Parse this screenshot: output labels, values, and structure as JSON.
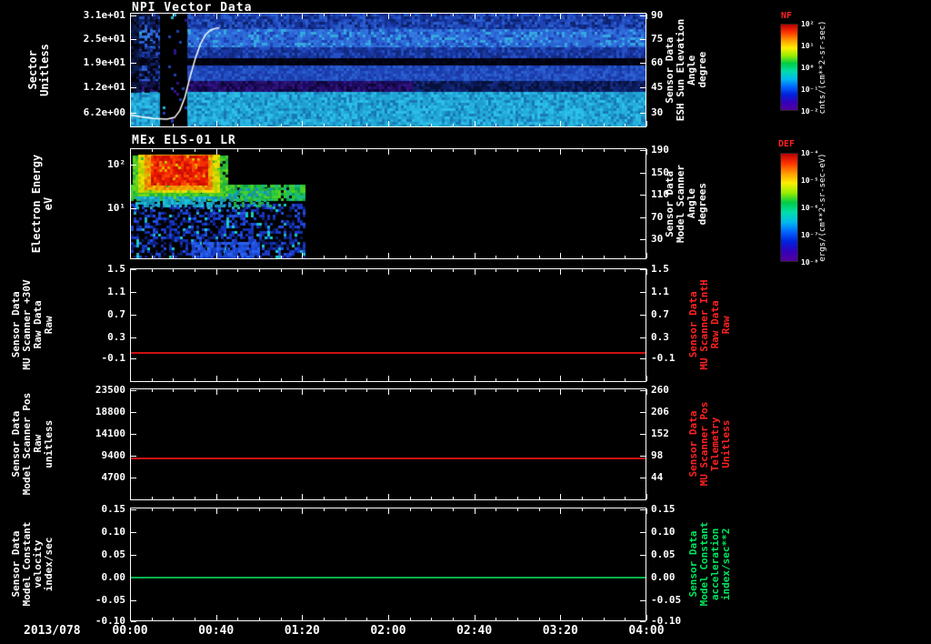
{
  "chart_data": {
    "type": "multi-panel time-series (2 spectrograms + 3 line plots)",
    "x_axis": {
      "date_label": "2013/078",
      "ticks": [
        "00:00",
        "00:40",
        "01:20",
        "02:00",
        "02:40",
        "03:20",
        "04:00"
      ],
      "span_hours": 4
    },
    "panels": [
      {
        "kind": "heatmap",
        "title": "NPI Vector Data",
        "left_label": "Sector\nUnitless",
        "right_label": "Sensor Data\nESH Sun Elevation\nAngle\ndegree",
        "left_ticks": [
          {
            "t": "3.1e+01",
            "f": 0.02
          },
          {
            "t": "2.5e+01",
            "f": 0.23
          },
          {
            "t": "1.9e+01",
            "f": 0.44
          },
          {
            "t": "1.2e+01",
            "f": 0.65
          },
          {
            "t": "6.2e+00",
            "f": 0.87
          }
        ],
        "right_ticks": [
          {
            "t": "90",
            "f": 0.02
          },
          {
            "t": "75",
            "f": 0.23
          },
          {
            "t": "60",
            "f": 0.44
          },
          {
            "t": "45",
            "f": 0.65
          },
          {
            "t": "30",
            "f": 0.87
          }
        ],
        "colorbar": "NF",
        "summary": "NPI counts vs sector: mostly blue/cyan flux, near-black band around sector ~15, purple band below it, bright cyan low sectors; data gap ~00:14-00:25; white overlay = Sun elevation rising from ~25 deg to ~88 deg by ~00:40",
        "overlay_line": {
          "name": "ESH Sun Elevation Angle (deg)",
          "color": "#ffffff",
          "approx_values_deg": [
            [
              "00:00",
              27
            ],
            [
              "00:17",
              24
            ],
            [
              "00:24",
              45
            ],
            [
              "00:31",
              75
            ],
            [
              "00:40",
              88
            ]
          ],
          "points_xf_yf": [
            [
              0,
              0.9
            ],
            [
              0.02,
              0.915
            ],
            [
              0.045,
              0.93
            ],
            [
              0.07,
              0.935
            ],
            [
              0.085,
              0.92
            ],
            [
              0.095,
              0.86
            ],
            [
              0.105,
              0.74
            ],
            [
              0.115,
              0.56
            ],
            [
              0.125,
              0.4
            ],
            [
              0.135,
              0.27
            ],
            [
              0.145,
              0.185
            ],
            [
              0.155,
              0.145
            ],
            [
              0.165,
              0.13
            ],
            [
              0.172,
              0.128
            ]
          ]
        },
        "data_gap_xf": [
          0.057,
          0.105
        ],
        "heat_regions": [
          {
            "x": [
              0,
              1
            ],
            "y": [
              0,
              0.14
            ],
            "p": 1,
            "colors": [
              "#16339b",
              "#1d43b5",
              "#2450c4",
              "#0d2370",
              "#2a5fd0",
              "#123090"
            ]
          },
          {
            "x": [
              0,
              1
            ],
            "y": [
              0.14,
              0.3
            ],
            "p": 1,
            "colors": [
              "#2a62d4",
              "#3379e0",
              "#2e6fd8",
              "#1d43b5",
              "#35a8e0",
              "#2a62d4"
            ]
          },
          {
            "x": [
              0,
              1
            ],
            "y": [
              0.3,
              0.4
            ],
            "p": 1,
            "colors": [
              "#1a3aa8",
              "#16339b",
              "#2450c4",
              "#112a80"
            ]
          },
          {
            "x": [
              0,
              1
            ],
            "y": [
              0.4,
              0.46
            ],
            "p": 1,
            "colors": [
              "#020212",
              "#04081f",
              "#020212",
              "#01010a"
            ]
          },
          {
            "x": [
              0,
              1
            ],
            "y": [
              0.46,
              0.6
            ],
            "p": 1,
            "colors": [
              "#1d43b5",
              "#2450c4",
              "#1a3aa8",
              "#2a5fd0"
            ]
          },
          {
            "x": [
              0,
              1
            ],
            "y": [
              0.6,
              0.7
            ],
            "p": 1,
            "colors": [
              "#2a1070",
              "#1d0a55",
              "#33138a",
              "#0d0535",
              "#1a0a60"
            ]
          },
          {
            "x": [
              0.55,
              1
            ],
            "y": [
              0.6,
              0.7
            ],
            "p": 1,
            "colors": [
              "#0d1f66",
              "#132a80",
              "#0a1850",
              "#071038"
            ]
          },
          {
            "x": [
              0,
              1
            ],
            "y": [
              0.7,
              1
            ],
            "p": 1,
            "colors": [
              "#1f9fd0",
              "#27b4e0",
              "#1a8fc4",
              "#2cc0e8",
              "#1878b4",
              "#22a8d8"
            ]
          },
          {
            "x": [
              0,
              0.055
            ],
            "y": [
              0,
              0.7
            ],
            "p": 0.6,
            "colors": [
              "#0a1440",
              "#060c2a",
              "#10205c",
              "#020210"
            ]
          },
          {
            "x": [
              0,
              0.014
            ],
            "y": [
              0,
              0.7
            ],
            "p": 1,
            "colors": [
              "#03030f",
              "#071233",
              "#0c1d4f"
            ]
          },
          {
            "x": [
              0.057,
              0.105
            ],
            "y": [
              0,
              1
            ],
            "p": 1,
            "colors": [
              "#000000"
            ]
          },
          {
            "x": [
              0.057,
              0.105
            ],
            "y": [
              0,
              1
            ],
            "p": 0.05,
            "colors": [
              "#1d43b5",
              "#27b4e0",
              "#33138a"
            ]
          }
        ]
      },
      {
        "kind": "heatmap",
        "title": "MEx ELS-01 LR",
        "left_label": "Electron Energy\neV",
        "right_label": "Sensor Data\nModel Scanner\nAngle\ndegrees",
        "left_ticks": [
          {
            "t": "10²",
            "f": 0.15
          },
          {
            "t": "10¹",
            "f": 0.54
          }
        ],
        "right_ticks": [
          {
            "t": "190",
            "f": 0.02
          },
          {
            "t": "150",
            "f": 0.22
          },
          {
            "t": "110",
            "f": 0.42
          },
          {
            "t": "70",
            "f": 0.62
          },
          {
            "t": "30",
            "f": 0.82
          }
        ],
        "colorbar": "DEF",
        "summary": "Electron spectrogram: intense 10-100 eV flux (red core, yellow/green halo) from ~00:02 to ~00:40; green band ~10-20 eV persists to ~01:20; blue speckle at low energies; no data after ~01:20",
        "data_extent_xf": 0.335,
        "heat_regions": [
          {
            "x": [
              0,
              0.335
            ],
            "y": [
              0.5,
              0.98
            ],
            "p": 0.5,
            "colors": [
              "#1330b0",
              "#1b3fd0",
              "#0c2080",
              "#2450e0",
              "#0a1860",
              "#1636c0"
            ]
          },
          {
            "x": [
              0,
              0.335
            ],
            "y": [
              0.5,
              0.98
            ],
            "p": 0.06,
            "colors": [
              "#20b0d0",
              "#18d0c8"
            ]
          },
          {
            "x": [
              0,
              0.335
            ],
            "y": [
              0.33,
              0.47
            ],
            "p": 0.92,
            "colors": [
              "#20c040",
              "#40d030",
              "#10a050",
              "#5cd020",
              "#18b890",
              "#28c838"
            ]
          },
          {
            "x": [
              0.004,
              0.185
            ],
            "y": [
              0.06,
              0.44
            ],
            "p": 0.95,
            "colors": [
              "#30c030",
              "#50d020",
              "#20b040",
              "#70d818"
            ]
          },
          {
            "x": [
              0.015,
              0.17
            ],
            "y": [
              0.05,
              0.4
            ],
            "p": 0.95,
            "colors": [
              "#d8d800",
              "#f0e000",
              "#b0d000"
            ]
          },
          {
            "x": [
              0.028,
              0.158
            ],
            "y": [
              0.05,
              0.36
            ],
            "p": 0.92,
            "colors": [
              "#f09800",
              "#f0b400",
              "#e87400"
            ]
          },
          {
            "x": [
              0.04,
              0.148
            ],
            "y": [
              0.06,
              0.32
            ],
            "p": 0.95,
            "colors": [
              "#e81800",
              "#f03000",
              "#cc0e00",
              "#ff4400"
            ]
          },
          {
            "x": [
              0.01,
              0.18
            ],
            "y": [
              0.44,
              0.52
            ],
            "p": 0.8,
            "colors": [
              "#18a8c8",
              "#20c0d8",
              "#1490b0"
            ]
          },
          {
            "x": [
              0.185,
              0.27
            ],
            "y": [
              0.36,
              0.52
            ],
            "p": 0.5,
            "colors": [
              "#20b040",
              "#18b890",
              "#1890c0"
            ]
          },
          {
            "x": [
              0.12,
              0.25
            ],
            "y": [
              0.85,
              1
            ],
            "p": 0.85,
            "colors": [
              "#2050e0",
              "#2860f0",
              "#1840c0"
            ]
          }
        ]
      },
      {
        "kind": "line",
        "title": "",
        "left_label": "Sensor Data\nMU Scanner +30V\nRaw Data\nRaw",
        "right_label": "Sensor Data\nMU Scanner IntH\nRaw Data\nRaw",
        "left_ticks": [
          {
            "t": "1.5",
            "f": 0.01
          },
          {
            "t": "1.1",
            "f": 0.21
          },
          {
            "t": "0.7",
            "f": 0.41
          },
          {
            "t": "0.3",
            "f": 0.61
          },
          {
            "t": "-0.1",
            "f": 0.79
          }
        ],
        "right_ticks": [
          {
            "t": "1.5",
            "f": 0.01
          },
          {
            "t": "1.1",
            "f": 0.21
          },
          {
            "t": "0.7",
            "f": 0.41
          },
          {
            "t": "0.3",
            "f": 0.61
          },
          {
            "t": "-0.1",
            "f": 0.79
          }
        ],
        "line": {
          "color": "#cc1111",
          "f": 0.745,
          "value": 0.0,
          "series": "constant ~0.0 from 00:00 to 04:00"
        }
      },
      {
        "kind": "line",
        "title": "",
        "left_label": "Sensor Data\nModel Scanner Pos\nRaw\nunitless",
        "right_label": "Sensor Data\nMU Scanner Pos\nTelemetry\nUnitless",
        "left_ticks": [
          {
            "t": "23500",
            "f": 0.016
          },
          {
            "t": "18800",
            "f": 0.211
          },
          {
            "t": "14100",
            "f": 0.407
          },
          {
            "t": "9400",
            "f": 0.602
          },
          {
            "t": "4700",
            "f": 0.797
          }
        ],
        "right_ticks": [
          {
            "t": "260",
            "f": 0.016
          },
          {
            "t": "206",
            "f": 0.211
          },
          {
            "t": "152",
            "f": 0.407
          },
          {
            "t": "98",
            "f": 0.602
          },
          {
            "t": "44",
            "f": 0.797
          }
        ],
        "line": {
          "color": "#cc1111",
          "f": 0.627,
          "value": 8800,
          "series": "constant ~8800 (left axis) / ~84 (right axis) from 00:00 to 04:00"
        }
      },
      {
        "kind": "line",
        "title": "",
        "left_label": "Sensor Data\nModel Constant\nvelocity\nindex/sec",
        "right_label": "Sensor Data\nModel Constant\nacceleration\nindex/sec**2",
        "left_ticks": [
          {
            "t": "0.15",
            "f": 0.016
          },
          {
            "t": "0.10",
            "f": 0.216
          },
          {
            "t": "0.05",
            "f": 0.416
          },
          {
            "t": "0.00",
            "f": 0.616
          },
          {
            "t": "-0.05",
            "f": 0.816
          },
          {
            "t": "-0.10",
            "f": 1.0
          }
        ],
        "right_ticks": [
          {
            "t": "0.15",
            "f": 0.016
          },
          {
            "t": "0.10",
            "f": 0.216
          },
          {
            "t": "0.05",
            "f": 0.416
          },
          {
            "t": "0.00",
            "f": 0.616
          },
          {
            "t": "-0.05",
            "f": 0.816
          },
          {
            "t": "-0.10",
            "f": 1.0
          }
        ],
        "line": {
          "color": "#00b24c",
          "f": 0.616,
          "value": 0.0,
          "series": "constant 0.00 from 00:00 to 04:00"
        }
      }
    ],
    "colorbars": [
      {
        "title": "NF",
        "unit": "cnts/(cm**2-sr-sec)",
        "ticks": [
          "10²",
          "10¹",
          "10⁰",
          "10⁻¹",
          "10⁻²"
        ]
      },
      {
        "title": "DEF",
        "unit": "ergs/(cm**2-sr-sec-eV)",
        "ticks": [
          "10⁻⁴",
          "10⁻⁵",
          "10⁻⁶",
          "10⁻⁷",
          "10⁻⁸"
        ]
      }
    ],
    "palette_rainbow": [
      "#bb0000",
      "#ff3300",
      "#ff9900",
      "#ffee00",
      "#99ee00",
      "#00cc44",
      "#00ddaa",
      "#00bbee",
      "#0066ff",
      "#0022dd",
      "#3300bb",
      "#550099"
    ]
  }
}
